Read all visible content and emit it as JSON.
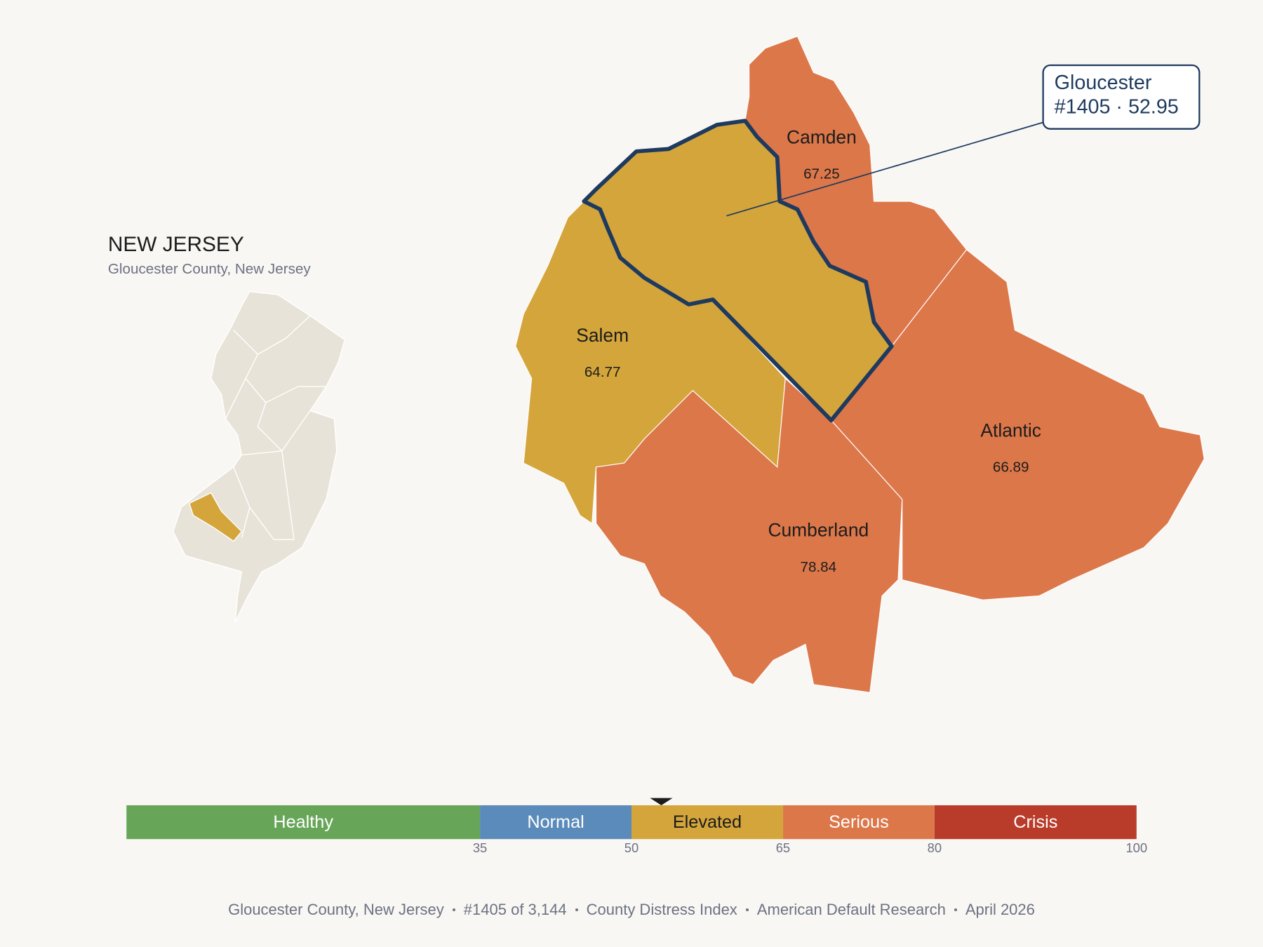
{
  "title": "NEW JERSEY",
  "subtitle": "Gloucester County, New Jersey",
  "county": {
    "name": "Gloucester",
    "rank_label": "#1405 · 52.95",
    "score": 52.95
  },
  "neighbors": [
    {
      "name": "Camden",
      "score": 67.25
    },
    {
      "name": "Salem",
      "score": 64.77
    },
    {
      "name": "Cumberland",
      "score": 78.84
    },
    {
      "name": "Atlantic",
      "score": 66.89
    }
  ],
  "scale": {
    "range": [
      0,
      100
    ],
    "bands": [
      {
        "name": "Healthy",
        "color": "#67a659"
      },
      {
        "name": "Normal",
        "color": "#5b8bba"
      },
      {
        "name": "Elevated",
        "color": "#d4a53b"
      },
      {
        "name": "Serious",
        "color": "#dc774a"
      },
      {
        "name": "Crisis",
        "color": "#b93c2b"
      }
    ],
    "ticks": [
      35,
      50,
      65,
      80,
      100
    ]
  },
  "footer": [
    "Gloucester County, New Jersey",
    "#1405 of 3,144",
    "County Distress Index",
    "American Default Research",
    "April 2026"
  ]
}
